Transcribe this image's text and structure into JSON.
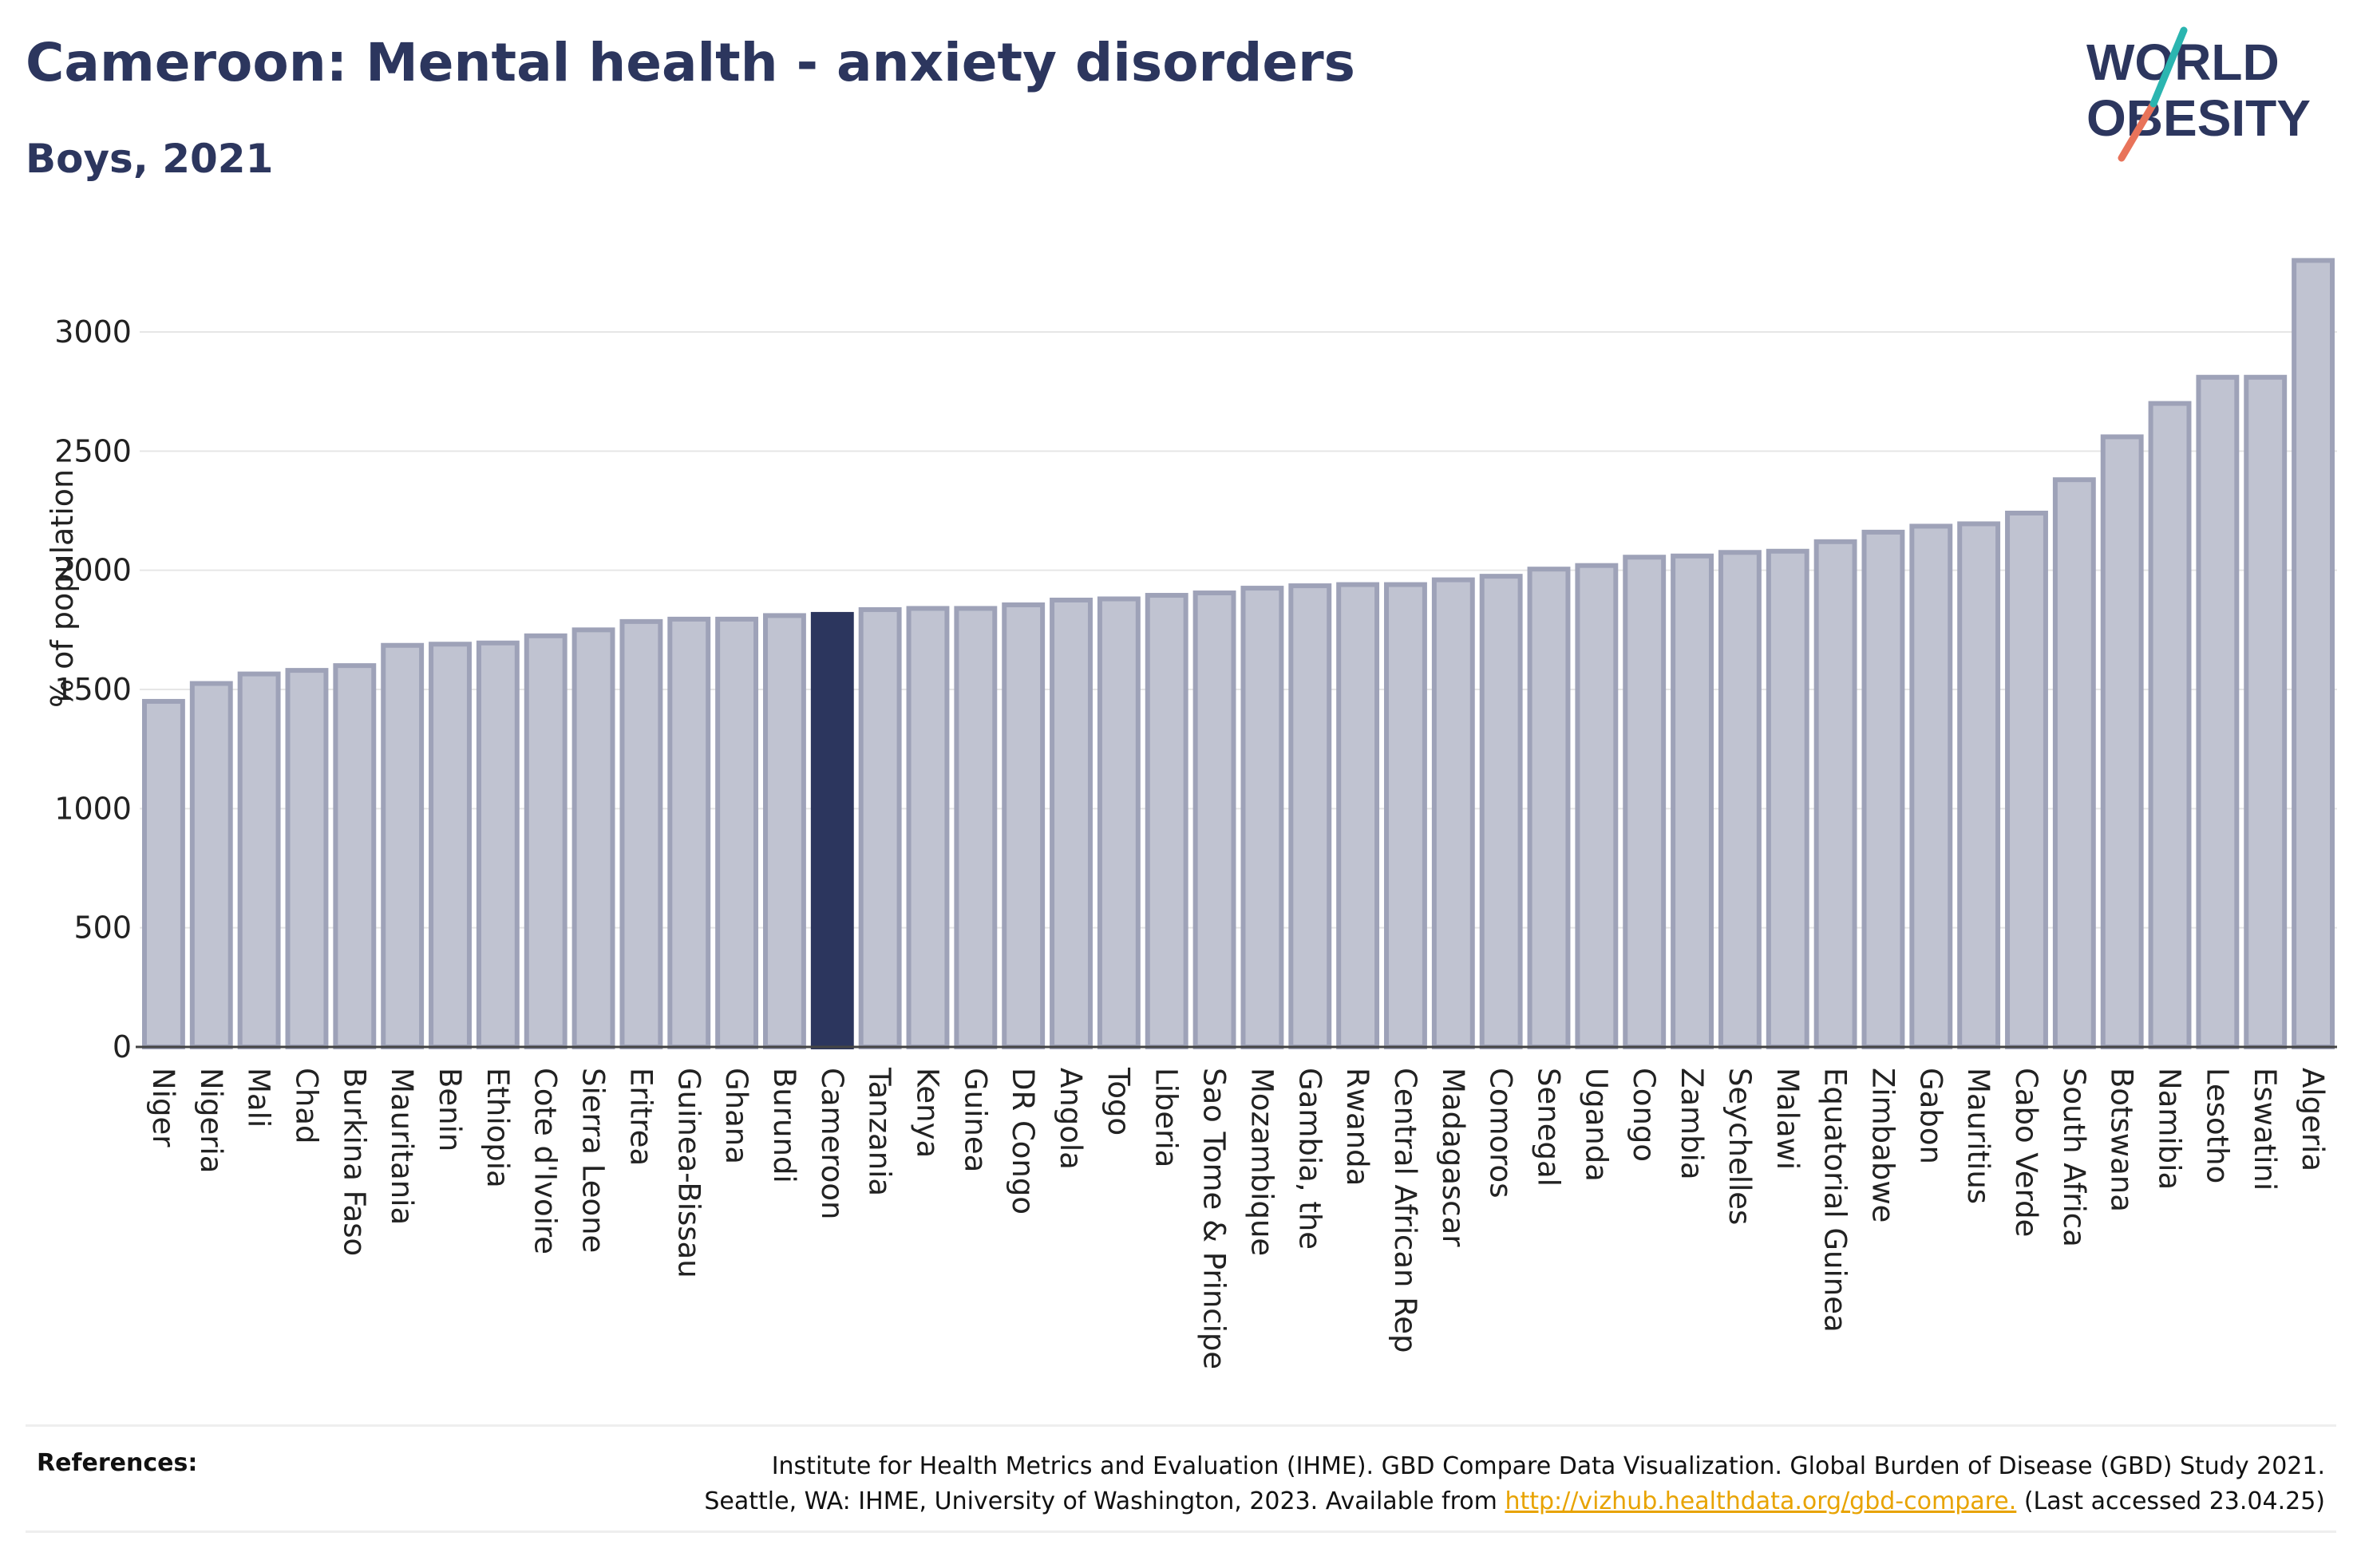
{
  "header": {
    "title": "Cameroon: Mental health - anxiety disorders",
    "subtitle": "Boys, 2021"
  },
  "logo": {
    "line1": "WORLD",
    "line2": "OBESITY"
  },
  "references": {
    "label": "References:",
    "line1": "Institute for Health Metrics and Evaluation (IHME). GBD Compare Data Visualization. Global Burden of Disease (GBD) Study 2021.",
    "line2_before": "Seattle, WA: IHME, University of Washington, 2023. Available from",
    "link": "http://vizhub.healthdata.org/gbd-compare.",
    "line2_after": "(Last accessed 23.04.25)"
  },
  "colors": {
    "bar_fill": "#c0c3d1",
    "bar_stroke": "#9ea2b8",
    "highlight": "#2c365e",
    "title": "#2c365e"
  },
  "chart_data": {
    "type": "bar",
    "ylabel": "% of population",
    "xlabel": "",
    "ylim": [
      0,
      3300
    ],
    "yticks": [
      0,
      500,
      1000,
      1500,
      2000,
      2500,
      3000
    ],
    "grid": true,
    "highlight": "Cameroon",
    "categories": [
      "Niger",
      "Nigeria",
      "Mali",
      "Chad",
      "Burkina Faso",
      "Mauritania",
      "Benin",
      "Ethiopia",
      "Cote d'Ivoire",
      "Sierra Leone",
      "Eritrea",
      "Guinea-Bissau",
      "Ghana",
      "Burundi",
      "Cameroon",
      "Tanzania",
      "Kenya",
      "Guinea",
      "DR Congo",
      "Angola",
      "Togo",
      "Liberia",
      "Sao Tome & Principe",
      "Mozambique",
      "Gambia, the",
      "Rwanda",
      "Central African Rep",
      "Madagascar",
      "Comoros",
      "Senegal",
      "Uganda",
      "Congo",
      "Zambia",
      "Seychelles",
      "Malawi",
      "Equatorial Guinea",
      "Zimbabwe",
      "Gabon",
      "Mauritius",
      "Cabo Verde",
      "South Africa",
      "Botswana",
      "Namibia",
      "Lesotho",
      "Eswatini",
      "Algeria"
    ],
    "values": [
      1450,
      1525,
      1565,
      1580,
      1600,
      1685,
      1690,
      1695,
      1725,
      1750,
      1785,
      1795,
      1795,
      1810,
      1815,
      1835,
      1840,
      1840,
      1855,
      1875,
      1880,
      1895,
      1905,
      1925,
      1935,
      1940,
      1940,
      1960,
      1975,
      2005,
      2020,
      2055,
      2060,
      2075,
      2080,
      2120,
      2160,
      2185,
      2195,
      2240,
      2380,
      2560,
      2700,
      2810,
      2810,
      3300
    ]
  }
}
